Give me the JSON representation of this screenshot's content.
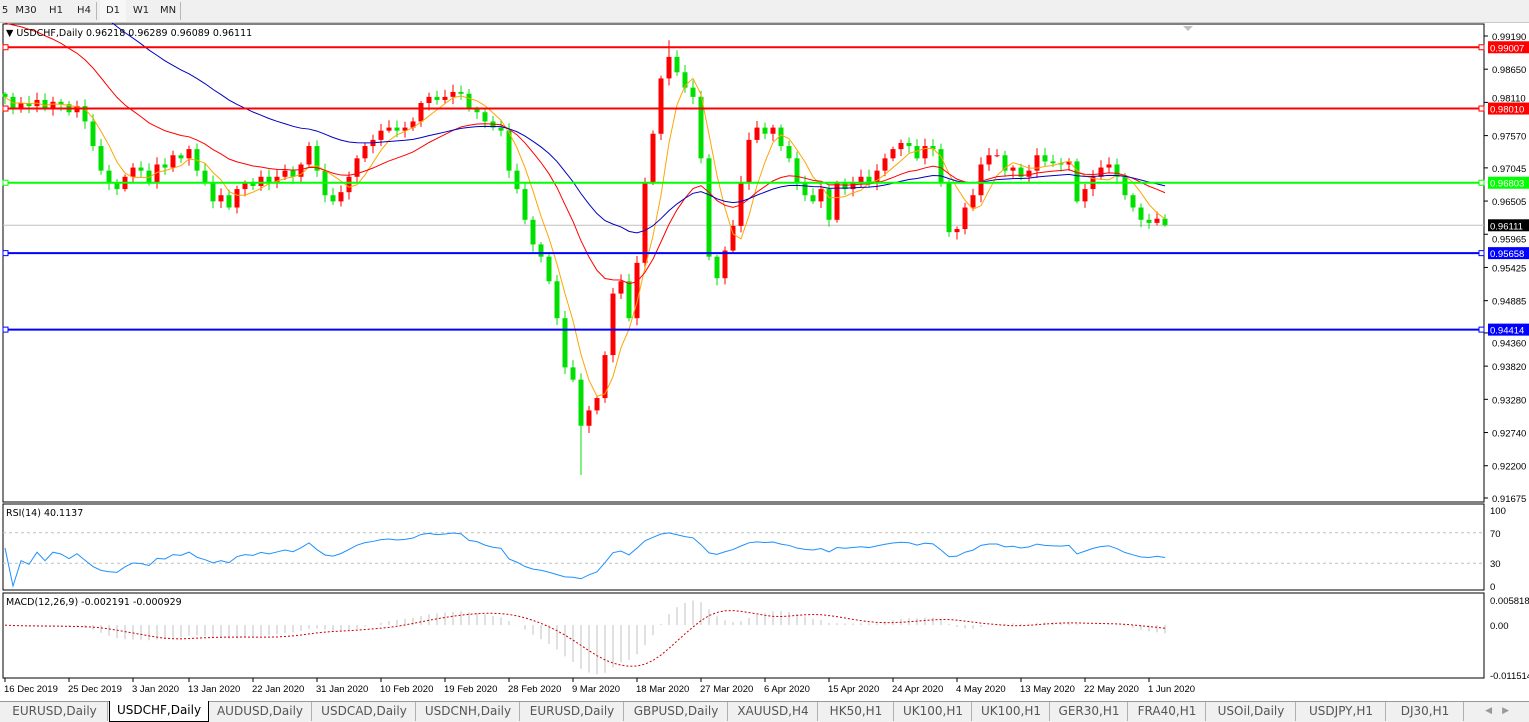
{
  "toolbar": {
    "timeframes": [
      {
        "label": "5",
        "active": false
      },
      {
        "label": "M30",
        "active": false
      },
      {
        "label": "H1",
        "active": false
      },
      {
        "label": "H4",
        "active": false
      },
      {
        "label": "D1",
        "active": true
      },
      {
        "label": "W1",
        "active": false
      },
      {
        "label": "MN",
        "active": false
      }
    ]
  },
  "chart": {
    "title": "USDCHF,Daily  0.96218 0.96289 0.96089 0.96111",
    "symbol": "USDCHF",
    "timeframe": "Daily",
    "last_bar": {
      "open": 0.96218,
      "high": 0.96289,
      "low": 0.96089,
      "close": 0.96111
    },
    "current_price_label": "0.96111",
    "price_axis": {
      "max": 0.9919,
      "min": 0.91675,
      "ticks": [
        "0.99190",
        "0.98650",
        "0.98110",
        "0.97570",
        "0.97045",
        "0.96505",
        "0.95965",
        "0.95425",
        "0.94885",
        "0.94360",
        "0.93820",
        "0.93280",
        "0.92740",
        "0.92200",
        "0.91675"
      ]
    },
    "horizontal_lines": [
      {
        "price": 0.99007,
        "label": "0.99007",
        "color": "#ff0000"
      },
      {
        "price": 0.9801,
        "label": "0.98010",
        "color": "#ff0000"
      },
      {
        "price": 0.96803,
        "label": "0.96803",
        "color": "#00ff00"
      },
      {
        "price": 0.95658,
        "label": "0.95658",
        "color": "#0000ff"
      },
      {
        "price": 0.94414,
        "label": "0.94414",
        "color": "#0000ff"
      }
    ],
    "colors": {
      "bull": "#ff0000",
      "bear": "#00e000",
      "ma_fast": "#ffa500",
      "ma_mid": "#ff0000",
      "ma_slow": "#0000c0",
      "rsi": "#1e90ff",
      "macd_hist": "#c0c0c0",
      "macd_signal": "#cc0000",
      "price_line": "#c0c0c0"
    },
    "closes": [
      0.982,
      0.98,
      0.981,
      0.9805,
      0.9815,
      0.98,
      0.9812,
      0.9808,
      0.9795,
      0.9805,
      0.978,
      0.974,
      0.97,
      0.968,
      0.967,
      0.969,
      0.9705,
      0.97,
      0.968,
      0.971,
      0.9705,
      0.9725,
      0.972,
      0.9735,
      0.97,
      0.968,
      0.965,
      0.966,
      0.964,
      0.967,
      0.968,
      0.9675,
      0.969,
      0.968,
      0.969,
      0.97,
      0.969,
      0.971,
      0.974,
      0.97,
      0.966,
      0.965,
      0.9665,
      0.969,
      0.972,
      0.974,
      0.975,
      0.9765,
      0.977,
      0.9765,
      0.977,
      0.978,
      0.981,
      0.982,
      0.9815,
      0.982,
      0.9828,
      0.9825,
      0.98,
      0.9795,
      0.978,
      0.977,
      0.9765,
      0.97,
      0.967,
      0.962,
      0.958,
      0.956,
      0.952,
      0.946,
      0.938,
      0.936,
      0.9285,
      0.931,
      0.933,
      0.94,
      0.95,
      0.952,
      0.946,
      0.955,
      0.968,
      0.976,
      0.985,
      0.9885,
      0.986,
      0.9835,
      0.982,
      0.972,
      0.956,
      0.9525,
      0.957,
      0.961,
      0.968,
      0.975,
      0.977,
      0.976,
      0.977,
      0.974,
      0.972,
      0.968,
      0.966,
      0.965,
      0.967,
      0.962,
      0.968,
      0.967,
      0.968,
      0.969,
      0.968,
      0.97,
      0.972,
      0.9735,
      0.9745,
      0.974,
      0.972,
      0.974,
      0.9735,
      0.968,
      0.96,
      0.9605,
      0.964,
      0.966,
      0.971,
      0.9725,
      0.9725,
      0.97,
      0.9705,
      0.969,
      0.97,
      0.9725,
      0.9715,
      0.9712,
      0.971,
      0.9715,
      0.965,
      0.967,
      0.969,
      0.9705,
      0.971,
      0.969,
      0.966,
      0.964,
      0.962,
      0.9615,
      0.96218,
      0.96111
    ],
    "date_labels": [
      {
        "bar": 0,
        "label": "16 Dec 2019"
      },
      {
        "bar": 8,
        "label": "25 Dec 2019"
      },
      {
        "bar": 16,
        "label": "3 Jan 2020"
      },
      {
        "bar": 23,
        "label": "13 Jan 2020"
      },
      {
        "bar": 31,
        "label": "22 Jan 2020"
      },
      {
        "bar": 39,
        "label": "31 Jan 2020"
      },
      {
        "bar": 47,
        "label": "10 Feb 2020"
      },
      {
        "bar": 55,
        "label": "19 Feb 2020"
      },
      {
        "bar": 63,
        "label": "28 Feb 2020"
      },
      {
        "bar": 71,
        "label": "9 Mar 2020"
      },
      {
        "bar": 79,
        "label": "18 Mar 2020"
      },
      {
        "bar": 87,
        "label": "27 Mar 2020"
      },
      {
        "bar": 95,
        "label": "6 Apr 2020"
      },
      {
        "bar": 103,
        "label": "15 Apr 2020"
      },
      {
        "bar": 111,
        "label": "24 Apr 2020"
      },
      {
        "bar": 119,
        "label": "4 May 2020"
      },
      {
        "bar": 127,
        "label": "13 May 2020"
      },
      {
        "bar": 135,
        "label": "22 May 2020"
      },
      {
        "bar": 143,
        "label": "1 Jun 2020"
      }
    ]
  },
  "rsi": {
    "title": "RSI(14) 40.1137",
    "ticks": [
      "100",
      "70",
      "30",
      "0"
    ],
    "levels": [
      70,
      30
    ]
  },
  "macd": {
    "title": "MACD(12,26,9) -0.002191 -0.000929",
    "max": 0.005818,
    "min": -0.011514,
    "ticks": [
      "0.005818",
      "0.00",
      "-0.011514"
    ]
  },
  "tabs": [
    {
      "label": "EURUSD,Daily",
      "active": false
    },
    {
      "label": "USDCHF,Daily",
      "active": true
    },
    {
      "label": "AUDUSD,Daily",
      "active": false
    },
    {
      "label": "USDCAD,Daily",
      "active": false
    },
    {
      "label": "USDCNH,Daily",
      "active": false
    },
    {
      "label": "EURUSD,Daily",
      "active": false
    },
    {
      "label": "GBPUSD,Daily",
      "active": false
    },
    {
      "label": "XAUUSD,H4",
      "active": false
    },
    {
      "label": "HK50,H1",
      "active": false
    },
    {
      "label": "UK100,H1",
      "active": false
    },
    {
      "label": "UK100,H1",
      "active": false
    },
    {
      "label": "GER30,H1",
      "active": false
    },
    {
      "label": "FRA40,H1",
      "active": false
    },
    {
      "label": "USOil,Daily",
      "active": false
    },
    {
      "label": "USDJPY,H1",
      "active": false
    },
    {
      "label": "DJ30,H1",
      "active": false
    }
  ]
}
